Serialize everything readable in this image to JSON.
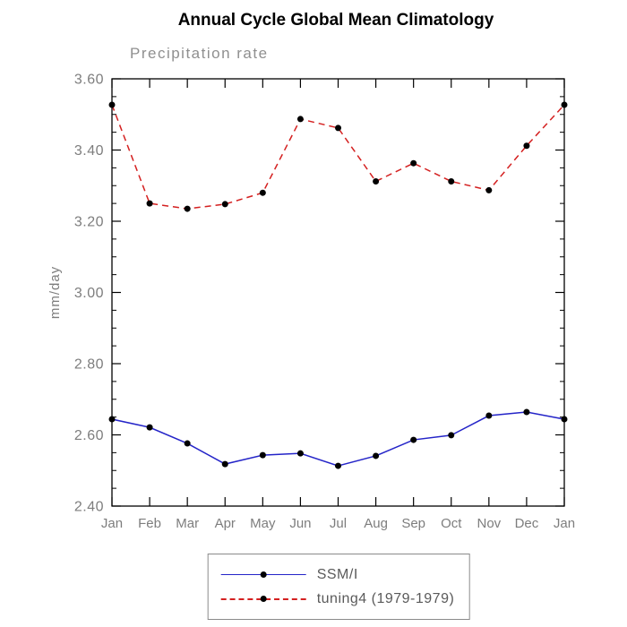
{
  "title": "Annual Cycle Global Mean Climatology",
  "chart_data": {
    "type": "line",
    "title": "Annual Cycle Global Mean Climatology",
    "subtitle": "Precipitation rate",
    "xlabel": "",
    "ylabel": "mm/day",
    "categories": [
      "Jan",
      "Feb",
      "Mar",
      "Apr",
      "May",
      "Jun",
      "Jul",
      "Aug",
      "Sep",
      "Oct",
      "Nov",
      "Dec",
      "Jan"
    ],
    "ylim": [
      2.4,
      3.6
    ],
    "ytick_step": 0.2,
    "yminor_step": 0.05,
    "grid": false,
    "legend_position": "bottom",
    "series": [
      {
        "name": "SSM/I",
        "color": "#2424c8",
        "style": "solid",
        "marker_color": "#000000",
        "values": [
          2.644,
          2.621,
          2.576,
          2.518,
          2.543,
          2.548,
          2.513,
          2.541,
          2.586,
          2.599,
          2.654,
          2.664,
          2.644
        ]
      },
      {
        "name": "tuning4 (1979-1979)",
        "color": "#d42020",
        "style": "dashed",
        "marker_color": "#000000",
        "values": [
          3.527,
          3.25,
          3.235,
          3.248,
          3.28,
          3.487,
          3.462,
          3.312,
          3.363,
          3.312,
          3.287,
          3.412,
          3.527
        ]
      }
    ]
  },
  "legend": {
    "items": [
      {
        "label": "SSM/I"
      },
      {
        "label": "tuning4 (1979-1979)"
      }
    ]
  },
  "colors": {
    "axis": "#000000",
    "tick_labels": "#7d7d7d",
    "subtitle": "#8f8f8f",
    "series_ssmi": "#2424c8",
    "series_tuning4": "#d42020",
    "marker": "#000000"
  }
}
